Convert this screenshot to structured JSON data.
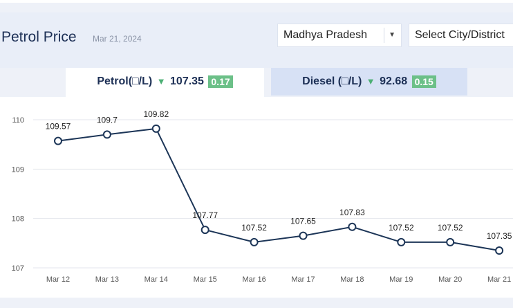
{
  "header": {
    "title": "Petrol Price",
    "date": "Mar 21, 2024",
    "state_select": {
      "value": "Madhya Pradesh",
      "caret_icon": "caret-down-icon"
    },
    "city_select": {
      "placeholder": "Select City/District"
    }
  },
  "tabs": [
    {
      "label": "Petrol(□/L)",
      "price": "107.35",
      "change": "0.17",
      "trend_icon": "triangle-down-icon",
      "active": true
    },
    {
      "label": "Diesel (□/L)",
      "price": "92.68",
      "change": "0.15",
      "trend_icon": "triangle-down-icon",
      "active": false
    }
  ],
  "colors": {
    "line": "#1c3557",
    "badge": "#6cc088",
    "down_arrow": "#4caf74",
    "title": "#1c2f55"
  },
  "chart_data": {
    "type": "line",
    "categories": [
      "Mar 12",
      "Mar 13",
      "Mar 14",
      "Mar 15",
      "Mar 16",
      "Mar 17",
      "Mar 18",
      "Mar 19",
      "Mar 20",
      "Mar 21"
    ],
    "values": [
      109.57,
      109.7,
      109.82,
      107.77,
      107.52,
      107.65,
      107.83,
      107.52,
      107.52,
      107.35
    ],
    "data_labels": [
      "109.57",
      "109.7",
      "109.82",
      "107.77",
      "107.52",
      "107.65",
      "107.83",
      "107.52",
      "107.52",
      "107.35"
    ],
    "yticks": [
      107,
      108,
      109,
      110
    ],
    "ytick_labels": [
      "107",
      "108",
      "109",
      "110"
    ],
    "ylim": [
      107,
      110
    ],
    "grid": true,
    "legend": "none"
  }
}
